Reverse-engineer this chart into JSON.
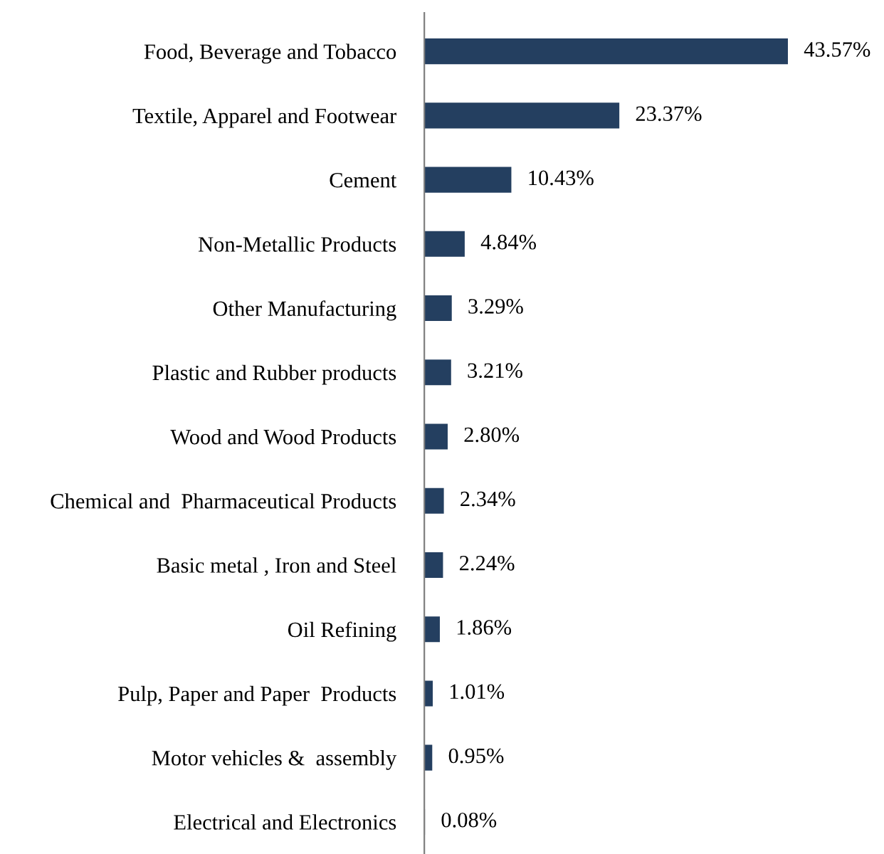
{
  "chart_data": {
    "type": "bar",
    "orientation": "horizontal",
    "categories": [
      "Food, Beverage and Tobacco",
      "Textile, Apparel and Footwear",
      "Cement",
      "Non-Metallic Products",
      "Other Manufacturing",
      "Plastic and Rubber products",
      "Wood and Wood Products",
      "Chemical and  Pharmaceutical Products",
      "Basic metal , Iron and Steel",
      "Oil Refining",
      "Pulp, Paper and Paper  Products",
      "Motor vehicles &  assembly",
      "Electrical and Electronics"
    ],
    "values": [
      43.57,
      23.37,
      10.43,
      4.84,
      3.29,
      3.21,
      2.8,
      2.34,
      2.24,
      1.86,
      1.01,
      0.95,
      0.08
    ],
    "value_labels": [
      "43.57%",
      "23.37%",
      "10.43%",
      "4.84%",
      "3.29%",
      "3.21%",
      "2.80%",
      "2.34%",
      "2.24%",
      "1.86%",
      "1.01%",
      "0.95%",
      "0.08%"
    ],
    "color": "#243f60",
    "grid": false,
    "legend": false
  }
}
